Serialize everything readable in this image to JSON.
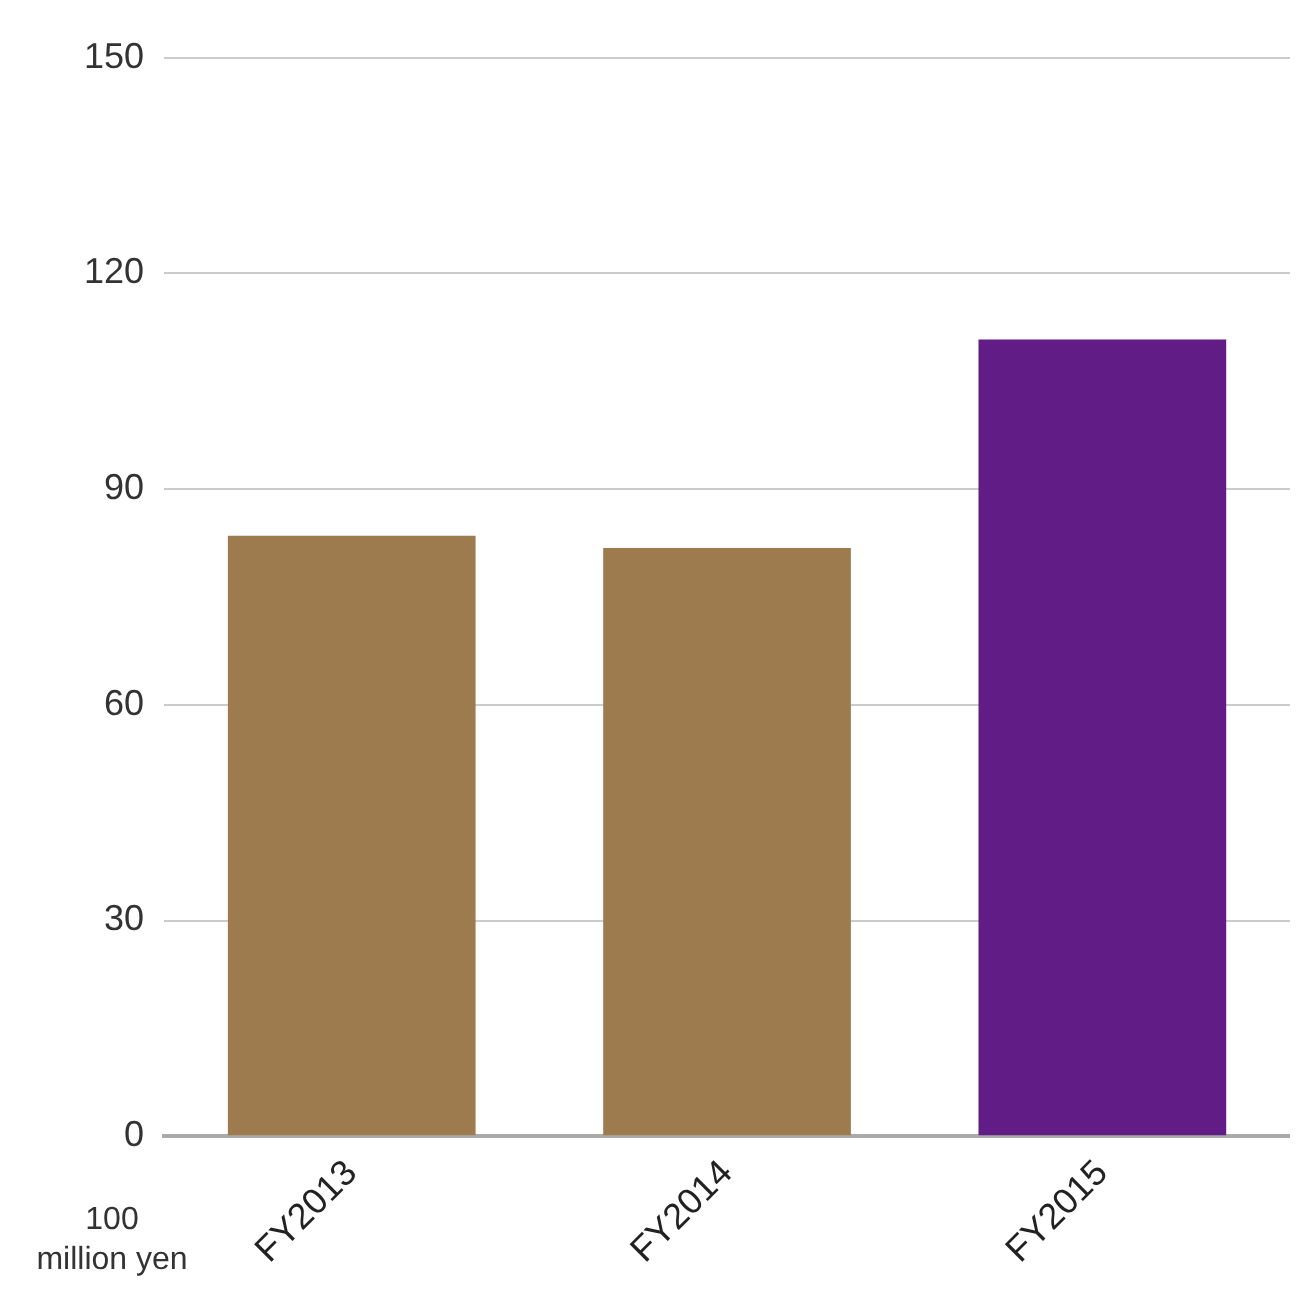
{
  "chart_data": {
    "type": "bar",
    "ylabel": "100 million yen",
    "categories": [
      "FY2013",
      "FY2014",
      "FY2015"
    ],
    "values": [
      83.5,
      81.8,
      110.8
    ],
    "colors": [
      "#9e7b4f",
      "#9e7b4f",
      "#621c85"
    ],
    "ylim": [
      0,
      150
    ],
    "yticks": [
      0,
      30,
      60,
      90,
      120,
      150
    ],
    "grid": "y",
    "legend": false
  }
}
